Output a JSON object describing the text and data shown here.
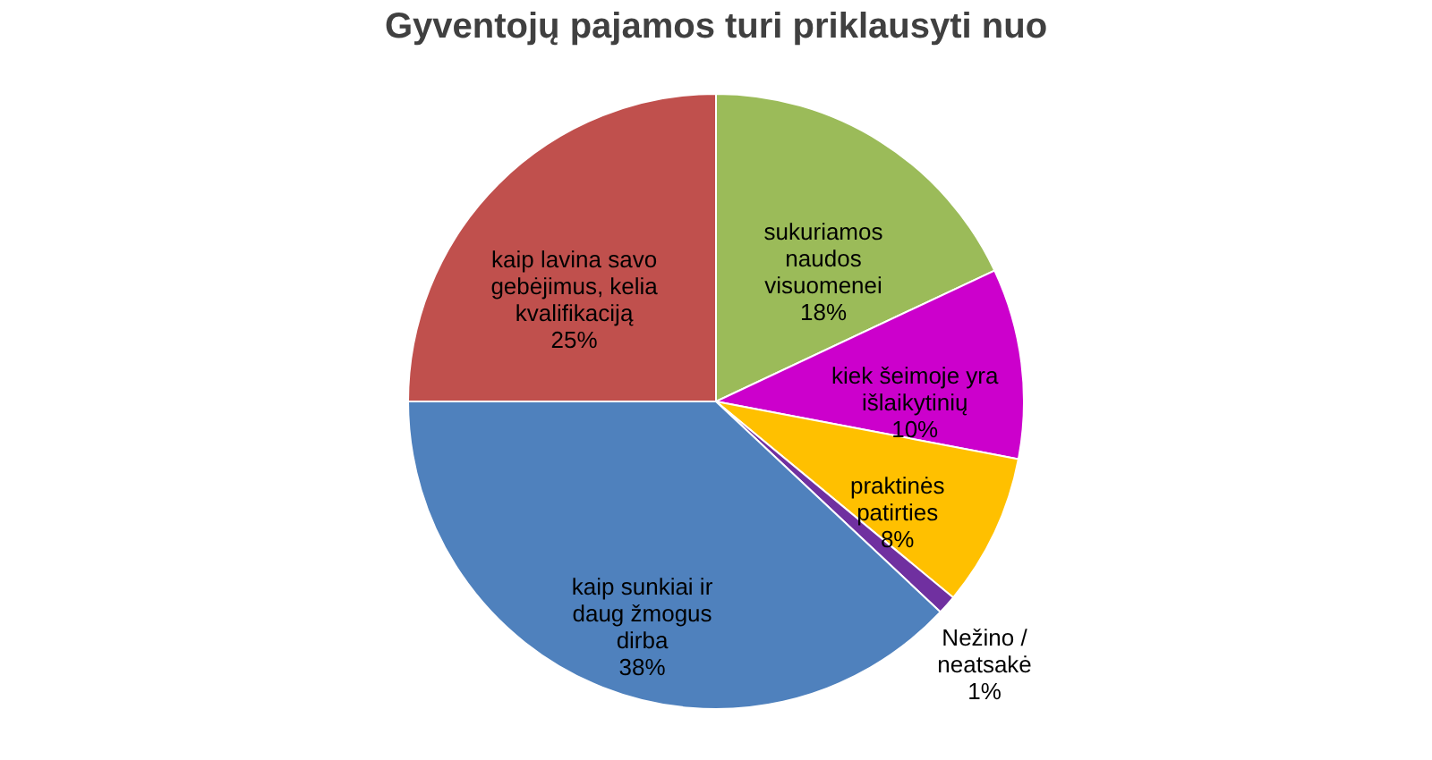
{
  "chart_data": {
    "type": "pie",
    "title": "Gyventojų pajamos turi priklausyti nuo",
    "categories": [
      "sukuriamos naudos visuomenei",
      "kiek šeimoje yra išlaikytinių",
      "praktinės patirties",
      "Nežino / neatsakė",
      "kaip sunkiai ir daug žmogus dirba",
      "kaip lavina savo gebėjimus, kelia kvalifikaciją"
    ],
    "values": [
      18,
      10,
      8,
      1,
      38,
      25
    ],
    "value_labels": [
      "18%",
      "10%",
      "8%",
      "1%",
      "38%",
      "25%"
    ],
    "colors": [
      "#9bbb59",
      "#cc00cc",
      "#ffc000",
      "#7030a0",
      "#4f81bd",
      "#c0504d"
    ],
    "legend": false
  }
}
